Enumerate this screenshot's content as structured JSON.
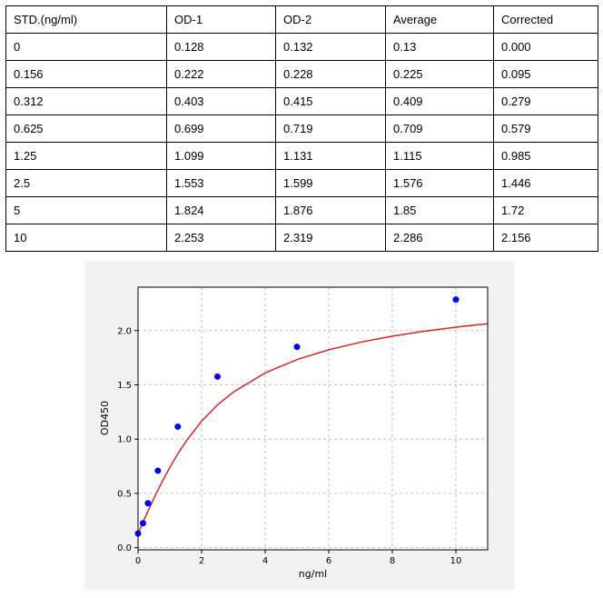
{
  "table": {
    "headers": [
      "STD.(ng/ml)",
      "OD-1",
      "OD-2",
      "Average",
      "Corrected"
    ],
    "rows": [
      [
        "0",
        "0.128",
        "0.132",
        "0.13",
        "0.000"
      ],
      [
        "0.156",
        "0.222",
        "0.228",
        "0.225",
        "0.095"
      ],
      [
        "0.312",
        "0.403",
        "0.415",
        "0.409",
        "0.279"
      ],
      [
        "0.625",
        "0.699",
        "0.719",
        "0.709",
        "0.579"
      ],
      [
        "1.25",
        "1.099",
        "1.131",
        "1.115",
        "0.985"
      ],
      [
        "2.5",
        "1.553",
        "1.599",
        "1.576",
        "1.446"
      ],
      [
        "5",
        "1.824",
        "1.876",
        "1.85",
        "1.72"
      ],
      [
        "10",
        "2.253",
        "2.319",
        "2.286",
        "2.156"
      ]
    ]
  },
  "chart_data": {
    "type": "scatter",
    "xlabel": "ng/ml",
    "ylabel": "OD450",
    "xlim": [
      0,
      11
    ],
    "ylim": [
      -0.02,
      2.4
    ],
    "xticks": [
      0,
      2,
      4,
      6,
      8,
      10
    ],
    "yticks": [
      0.0,
      0.5,
      1.0,
      1.5,
      2.0
    ],
    "grid": true,
    "points": {
      "x": [
        0,
        0.156,
        0.312,
        0.625,
        1.25,
        2.5,
        5,
        10
      ],
      "y": [
        0.13,
        0.225,
        0.409,
        0.709,
        1.115,
        1.576,
        1.85,
        2.286
      ],
      "color": "#0000ff"
    },
    "fit_curve": {
      "color": "#d62728",
      "x": [
        0,
        0.1,
        0.2,
        0.3,
        0.5,
        0.75,
        1.0,
        1.25,
        1.5,
        2.0,
        2.5,
        3.0,
        4.0,
        5.0,
        6.0,
        7.0,
        8.0,
        9.0,
        10.0,
        11.0
      ],
      "y": [
        0.13,
        0.197,
        0.264,
        0.329,
        0.455,
        0.603,
        0.74,
        0.864,
        0.976,
        1.166,
        1.315,
        1.434,
        1.61,
        1.733,
        1.823,
        1.893,
        1.949,
        1.994,
        2.032,
        2.063
      ]
    }
  }
}
